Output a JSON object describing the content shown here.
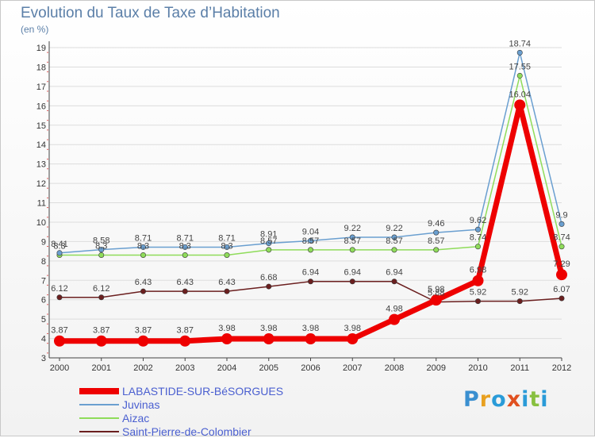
{
  "title": "Evolution du Taux de Taxe d’Habitation",
  "unit_label": "(en %)",
  "logo": {
    "text": "Proxiti",
    "colors": [
      "#3a8fd0",
      "#e8a020",
      "#2a9bd8",
      "#e05020",
      "#2a9bd8",
      "#88c040",
      "#2a9bd8"
    ]
  },
  "chart_data": {
    "type": "line",
    "title": "Evolution du Taux de Taxe d’Habitation",
    "ylabel": "(en %)",
    "categories": [
      "2000",
      "2001",
      "2002",
      "2003",
      "2004",
      "2005",
      "2006",
      "2007",
      "2008",
      "2009",
      "2010",
      "2011",
      "2012"
    ],
    "ylim": [
      3,
      19
    ],
    "yticks": [
      3,
      4,
      5,
      6,
      7,
      8,
      9,
      10,
      11,
      12,
      13,
      14,
      15,
      16,
      17,
      18,
      19
    ],
    "series": [
      {
        "name": "Saint-Pierre-de-Colombier",
        "color": "#6b1f1f",
        "lineWidth": 1.5,
        "markerRadius": 3.2,
        "values": [
          6.12,
          6.12,
          6.43,
          6.43,
          6.43,
          6.68,
          6.94,
          6.94,
          6.94,
          5.88,
          5.92,
          5.92,
          6.07
        ],
        "labels": [
          "6.12",
          "6.12",
          "6.43",
          "6.43",
          "6.43",
          "6.68",
          "6.94",
          "6.94",
          "6.94",
          "5.88",
          "5.92",
          "5.92",
          "6.07"
        ]
      },
      {
        "name": "Aizac",
        "color": "#8fdc5a",
        "lineWidth": 1.5,
        "markerRadius": 3.2,
        "values": [
          8.3,
          8.3,
          8.3,
          8.3,
          8.3,
          8.57,
          8.57,
          8.57,
          8.57,
          8.57,
          8.74,
          17.55,
          8.74
        ],
        "labels": [
          "8.3",
          "8.3",
          "8.3",
          "8.3",
          "8.3",
          "8.57",
          "8.57",
          "8.57",
          "8.57",
          "8.57",
          "8.74",
          "17.55",
          "8.74"
        ]
      },
      {
        "name": "Juvinas",
        "color": "#6a9fd0",
        "lineWidth": 1.5,
        "markerRadius": 3.2,
        "values": [
          8.41,
          8.58,
          8.71,
          8.71,
          8.71,
          8.91,
          9.04,
          9.22,
          9.22,
          9.46,
          9.62,
          18.74,
          9.9
        ],
        "labels": [
          "8.41",
          "8.58",
          "8.71",
          "8.71",
          "8.71",
          "8.91",
          "9.04",
          "9.22",
          "9.22",
          "9.46",
          "9.62",
          "18.74",
          "9.9"
        ]
      },
      {
        "name": "LABASTIDE-SUR-BéSORGUES",
        "color": "#ee0000",
        "lineWidth": 7,
        "markerRadius": 7,
        "values": [
          3.87,
          3.87,
          3.87,
          3.87,
          3.98,
          3.98,
          3.98,
          3.98,
          4.98,
          5.98,
          6.98,
          16.04,
          7.29
        ],
        "labels": [
          "3.87",
          "3.87",
          "3.87",
          "3.87",
          "3.98",
          "3.98",
          "3.98",
          "3.98",
          "4.98",
          "5.98",
          "6.98",
          "16.04",
          "7.29"
        ]
      }
    ],
    "legend": [
      {
        "name": "LABASTIDE-SUR-BéSORGUES",
        "color": "#ee0000",
        "thickness": 8
      },
      {
        "name": "Juvinas",
        "color": "#6a9fd0",
        "thickness": 2
      },
      {
        "name": "Aizac",
        "color": "#8fdc5a",
        "thickness": 2
      },
      {
        "name": "Saint-Pierre-de-Colombier",
        "color": "#6b1f1f",
        "thickness": 2
      }
    ]
  }
}
